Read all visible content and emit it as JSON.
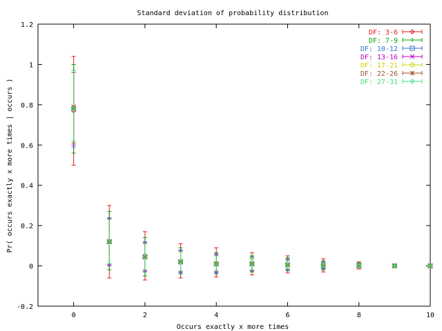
{
  "chart_data": {
    "type": "errorbar",
    "title": "Standard deviation of probability distribution",
    "xlabel": "Occurs exactly x more times",
    "ylabel": "Pr( occurs exactly x more times | occurs )",
    "xlim": [
      -1,
      10
    ],
    "ylim": [
      -0.2,
      1.2
    ],
    "xticks": [
      0,
      2,
      4,
      6,
      8,
      10
    ],
    "yticks": [
      -0.2,
      0,
      0.2,
      0.4,
      0.6,
      0.8,
      1,
      1.2
    ],
    "grid": false,
    "legend_position": "top-right",
    "series": [
      {
        "name": "DF: 3-6",
        "color": "#e41a1c",
        "marker": "diamond",
        "points": [
          {
            "x": 0,
            "y": 0.77,
            "low": 0.5,
            "high": 1.04
          },
          {
            "x": 1,
            "y": 0.12,
            "low": -0.06,
            "high": 0.3
          },
          {
            "x": 2,
            "y": 0.05,
            "low": -0.07,
            "high": 0.17
          },
          {
            "x": 3,
            "y": 0.02,
            "low": -0.06,
            "high": 0.11
          },
          {
            "x": 4,
            "y": 0.01,
            "low": -0.055,
            "high": 0.09
          },
          {
            "x": 5,
            "y": 0.01,
            "low": -0.045,
            "high": 0.065
          },
          {
            "x": 6,
            "y": 0.005,
            "low": -0.035,
            "high": 0.05
          },
          {
            "x": 7,
            "y": 0.0,
            "low": -0.03,
            "high": 0.035
          },
          {
            "x": 8,
            "y": 0.0,
            "low": -0.015,
            "high": 0.02
          },
          {
            "x": 9,
            "y": 0.0,
            "low": -0.01,
            "high": 0.01
          },
          {
            "x": 10,
            "y": 0.0,
            "low": -0.003,
            "high": 0.003
          }
        ]
      },
      {
        "name": "DF: 7-9",
        "color": "#00a000",
        "marker": "plus",
        "points": [
          {
            "x": 0,
            "y": 0.78,
            "low": 0.56,
            "high": 1.0
          },
          {
            "x": 1,
            "y": 0.12,
            "low": -0.02,
            "high": 0.27
          },
          {
            "x": 2,
            "y": 0.045,
            "low": -0.05,
            "high": 0.14
          },
          {
            "x": 3,
            "y": 0.02,
            "low": -0.04,
            "high": 0.09
          },
          {
            "x": 4,
            "y": 0.01,
            "low": -0.04,
            "high": 0.065
          },
          {
            "x": 5,
            "y": 0.01,
            "low": -0.03,
            "high": 0.05
          },
          {
            "x": 6,
            "y": 0.005,
            "low": -0.025,
            "high": 0.04
          },
          {
            "x": 7,
            "y": 0.0,
            "low": -0.02,
            "high": 0.025
          },
          {
            "x": 8,
            "y": 0.0,
            "low": -0.01,
            "high": 0.015
          },
          {
            "x": 9,
            "y": 0.0,
            "low": -0.008,
            "high": 0.008
          },
          {
            "x": 10,
            "y": 0.0,
            "low": -0.002,
            "high": 0.002
          }
        ]
      },
      {
        "name": "DF: 10-12",
        "color": "#2e72c8",
        "marker": "square",
        "points": [
          {
            "x": 0,
            "y": 0.78,
            "low": 0.59,
            "high": 0.97
          },
          {
            "x": 1,
            "y": 0.12,
            "low": 0.0,
            "high": 0.24
          },
          {
            "x": 2,
            "y": 0.045,
            "low": -0.03,
            "high": 0.12
          },
          {
            "x": 3,
            "y": 0.02,
            "low": -0.035,
            "high": 0.08
          },
          {
            "x": 4,
            "y": 0.01,
            "low": -0.035,
            "high": 0.06
          },
          {
            "x": 5,
            "y": 0.01,
            "low": -0.025,
            "high": 0.045
          },
          {
            "x": 6,
            "y": 0.005,
            "low": -0.02,
            "high": 0.035
          },
          {
            "x": 7,
            "y": 0.0,
            "low": -0.015,
            "high": 0.02
          },
          {
            "x": 8,
            "y": 0.0,
            "low": -0.01,
            "high": 0.012
          },
          {
            "x": 9,
            "y": 0.0,
            "low": -0.006,
            "high": 0.006
          },
          {
            "x": 10,
            "y": 0.0,
            "low": -0.002,
            "high": 0.002
          }
        ]
      },
      {
        "name": "DF: 13-16",
        "color": "#c000c0",
        "marker": "cross",
        "points": [
          {
            "x": 0,
            "y": 0.78,
            "low": 0.6,
            "high": 0.96
          },
          {
            "x": 1,
            "y": 0.12,
            "low": 0.005,
            "high": 0.235
          },
          {
            "x": 2,
            "y": 0.045,
            "low": -0.025,
            "high": 0.115
          },
          {
            "x": 3,
            "y": 0.02,
            "low": -0.03,
            "high": 0.075
          },
          {
            "x": 4,
            "y": 0.01,
            "low": -0.03,
            "high": 0.055
          },
          {
            "x": 5,
            "y": 0.01,
            "low": -0.025,
            "high": 0.04
          },
          {
            "x": 6,
            "y": 0.005,
            "low": -0.018,
            "high": 0.03
          },
          {
            "x": 7,
            "y": 0.0,
            "low": -0.012,
            "high": 0.018
          },
          {
            "x": 8,
            "y": 0.0,
            "low": -0.008,
            "high": 0.01
          },
          {
            "x": 9,
            "y": 0.0,
            "low": -0.005,
            "high": 0.005
          },
          {
            "x": 10,
            "y": 0.0,
            "low": -0.002,
            "high": 0.002
          }
        ]
      },
      {
        "name": "DF: 17-21",
        "color": "#c8d800",
        "marker": "circle",
        "points": [
          {
            "x": 0,
            "y": 0.78,
            "low": 0.61,
            "high": 0.96
          },
          {
            "x": 1,
            "y": 0.12,
            "low": 0.01,
            "high": 0.23
          },
          {
            "x": 2,
            "y": 0.045,
            "low": -0.02,
            "high": 0.11
          },
          {
            "x": 3,
            "y": 0.02,
            "low": -0.025,
            "high": 0.07
          },
          {
            "x": 4,
            "y": 0.01,
            "low": -0.025,
            "high": 0.05
          },
          {
            "x": 5,
            "y": 0.01,
            "low": -0.02,
            "high": 0.04
          },
          {
            "x": 6,
            "y": 0.005,
            "low": -0.015,
            "high": 0.028
          },
          {
            "x": 7,
            "y": 0.0,
            "low": -0.01,
            "high": 0.016
          },
          {
            "x": 8,
            "y": 0.0,
            "low": -0.007,
            "high": 0.009
          },
          {
            "x": 9,
            "y": 0.0,
            "low": -0.004,
            "high": 0.004
          },
          {
            "x": 10,
            "y": 0.0,
            "low": -0.001,
            "high": 0.001
          }
        ]
      },
      {
        "name": "DF: 22-26",
        "color": "#a0522d",
        "marker": "star",
        "points": [
          {
            "x": 0,
            "y": 0.79,
            "low": 0.61,
            "high": 0.96
          },
          {
            "x": 1,
            "y": 0.12,
            "low": 0.01,
            "high": 0.23
          },
          {
            "x": 2,
            "y": 0.045,
            "low": -0.02,
            "high": 0.11
          },
          {
            "x": 3,
            "y": 0.02,
            "low": -0.025,
            "high": 0.07
          },
          {
            "x": 4,
            "y": 0.01,
            "low": -0.025,
            "high": 0.05
          },
          {
            "x": 5,
            "y": 0.01,
            "low": -0.02,
            "high": 0.035
          },
          {
            "x": 6,
            "y": 0.005,
            "low": -0.015,
            "high": 0.027
          },
          {
            "x": 7,
            "y": 0.0,
            "low": -0.01,
            "high": 0.015
          },
          {
            "x": 8,
            "y": 0.0,
            "low": -0.006,
            "high": 0.008
          },
          {
            "x": 9,
            "y": 0.0,
            "low": -0.004,
            "high": 0.004
          },
          {
            "x": 10,
            "y": 0.0,
            "low": -0.001,
            "high": 0.001
          }
        ]
      },
      {
        "name": "DF: 27-31",
        "color": "#40e080",
        "marker": "diamond",
        "points": [
          {
            "x": 0,
            "y": 0.78,
            "low": 0.62,
            "high": 0.97
          },
          {
            "x": 1,
            "y": 0.12,
            "low": 0.01,
            "high": 0.23
          },
          {
            "x": 2,
            "y": 0.045,
            "low": -0.02,
            "high": 0.11
          },
          {
            "x": 3,
            "y": 0.02,
            "low": -0.025,
            "high": 0.07
          },
          {
            "x": 4,
            "y": 0.01,
            "low": -0.025,
            "high": 0.05
          },
          {
            "x": 5,
            "y": 0.01,
            "low": -0.02,
            "high": 0.035
          },
          {
            "x": 6,
            "y": 0.005,
            "low": -0.015,
            "high": 0.026
          },
          {
            "x": 7,
            "y": 0.0,
            "low": -0.01,
            "high": 0.015
          },
          {
            "x": 8,
            "y": 0.0,
            "low": -0.006,
            "high": 0.008
          },
          {
            "x": 9,
            "y": 0.0,
            "low": -0.004,
            "high": 0.004
          },
          {
            "x": 10,
            "y": 0.0,
            "low": -0.001,
            "high": 0.001
          }
        ]
      }
    ]
  }
}
